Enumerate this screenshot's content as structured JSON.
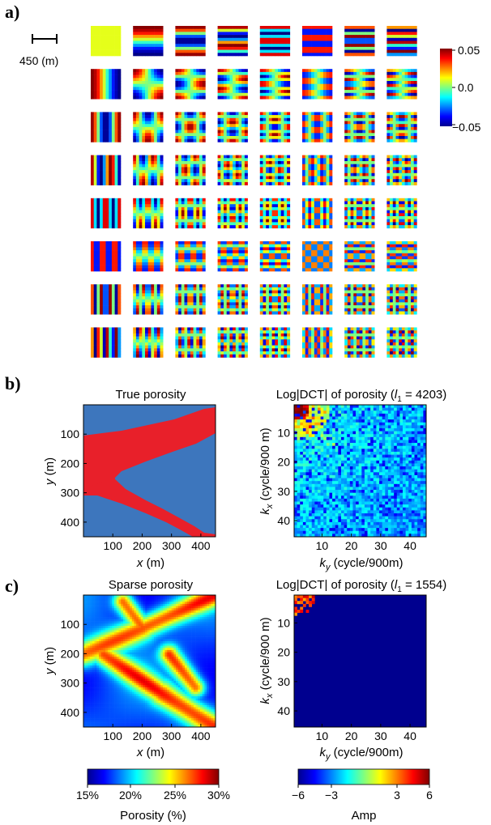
{
  "panels": {
    "a": {
      "letter": "a)",
      "scale_bar_label": "450 (m)",
      "grid_rows": 8,
      "grid_cols": 8,
      "colorbar": {
        "max_label": "0.05",
        "mid_label": "0.0",
        "min_label": "−0.05"
      }
    },
    "b": {
      "letter": "b)",
      "left_title": "True porosity",
      "right_title_main": "Log|DCT| of porosity (",
      "right_title_l": "l",
      "right_title_sub": "1",
      "right_title_val": " = 4203)"
    },
    "c": {
      "letter": "c)",
      "left_title": "Sparse porosity",
      "right_title_main": "Log|DCT| of porosity (",
      "right_title_l": "l",
      "right_title_sub": "1",
      "right_title_val": " = 1554)"
    }
  },
  "axes": {
    "spatial_y_label": "y",
    "spatial_y_unit": " (m)",
    "spatial_x_label": "x",
    "spatial_x_unit": " (m)",
    "spatial_y_ticks": [
      "100",
      "200",
      "300",
      "400"
    ],
    "spatial_x_ticks": [
      "100",
      "200",
      "300",
      "400"
    ],
    "freq_y_label_k": "k",
    "freq_y_label_sub": "x",
    "freq_y_label_unit": " (cycle/900 m)",
    "freq_x_label_k": "k",
    "freq_x_label_sub": "y",
    "freq_x_label_unit": " (cycle/900m)",
    "freq_y_ticks": [
      "10",
      "20",
      "30",
      "40"
    ],
    "freq_x_ticks": [
      "10",
      "20",
      "30",
      "40"
    ]
  },
  "colorbars": {
    "porosity": {
      "ticks": [
        "15%",
        "20%",
        "25%",
        "30%"
      ],
      "label": "Porosity (%)"
    },
    "amp": {
      "ticks": [
        "−6",
        "−3",
        "3",
        "6"
      ],
      "label": "Amp"
    }
  },
  "chart_data": [
    {
      "type": "heatmap",
      "title": "True porosity",
      "xlabel": "x (m)",
      "ylabel": "y (m)",
      "xlim": [
        0,
        450
      ],
      "ylim": [
        450,
        0
      ],
      "values_description_colors": {
        "channel": "#e8202a",
        "background": "#3d76bd"
      }
    },
    {
      "type": "heatmap",
      "title": "Log|DCT| of porosity (l1 = 4203)",
      "xlabel": "ky (cycle/900m)",
      "ylabel": "kx (cycle/900 m)",
      "xlim": [
        1,
        45
      ],
      "ylim": [
        45,
        1
      ]
    },
    {
      "type": "heatmap",
      "title": "Sparse porosity",
      "xlabel": "x (m)",
      "ylabel": "y (m)",
      "xlim": [
        0,
        450
      ],
      "ylim": [
        450,
        0
      ]
    },
    {
      "type": "heatmap",
      "title": "Log|DCT| of porosity (l1 = 1554)",
      "xlabel": "ky (cycle/900m)",
      "ylabel": "kx (cycle/900 m)",
      "xlim": [
        1,
        45
      ],
      "ylim": [
        45,
        1
      ]
    }
  ]
}
